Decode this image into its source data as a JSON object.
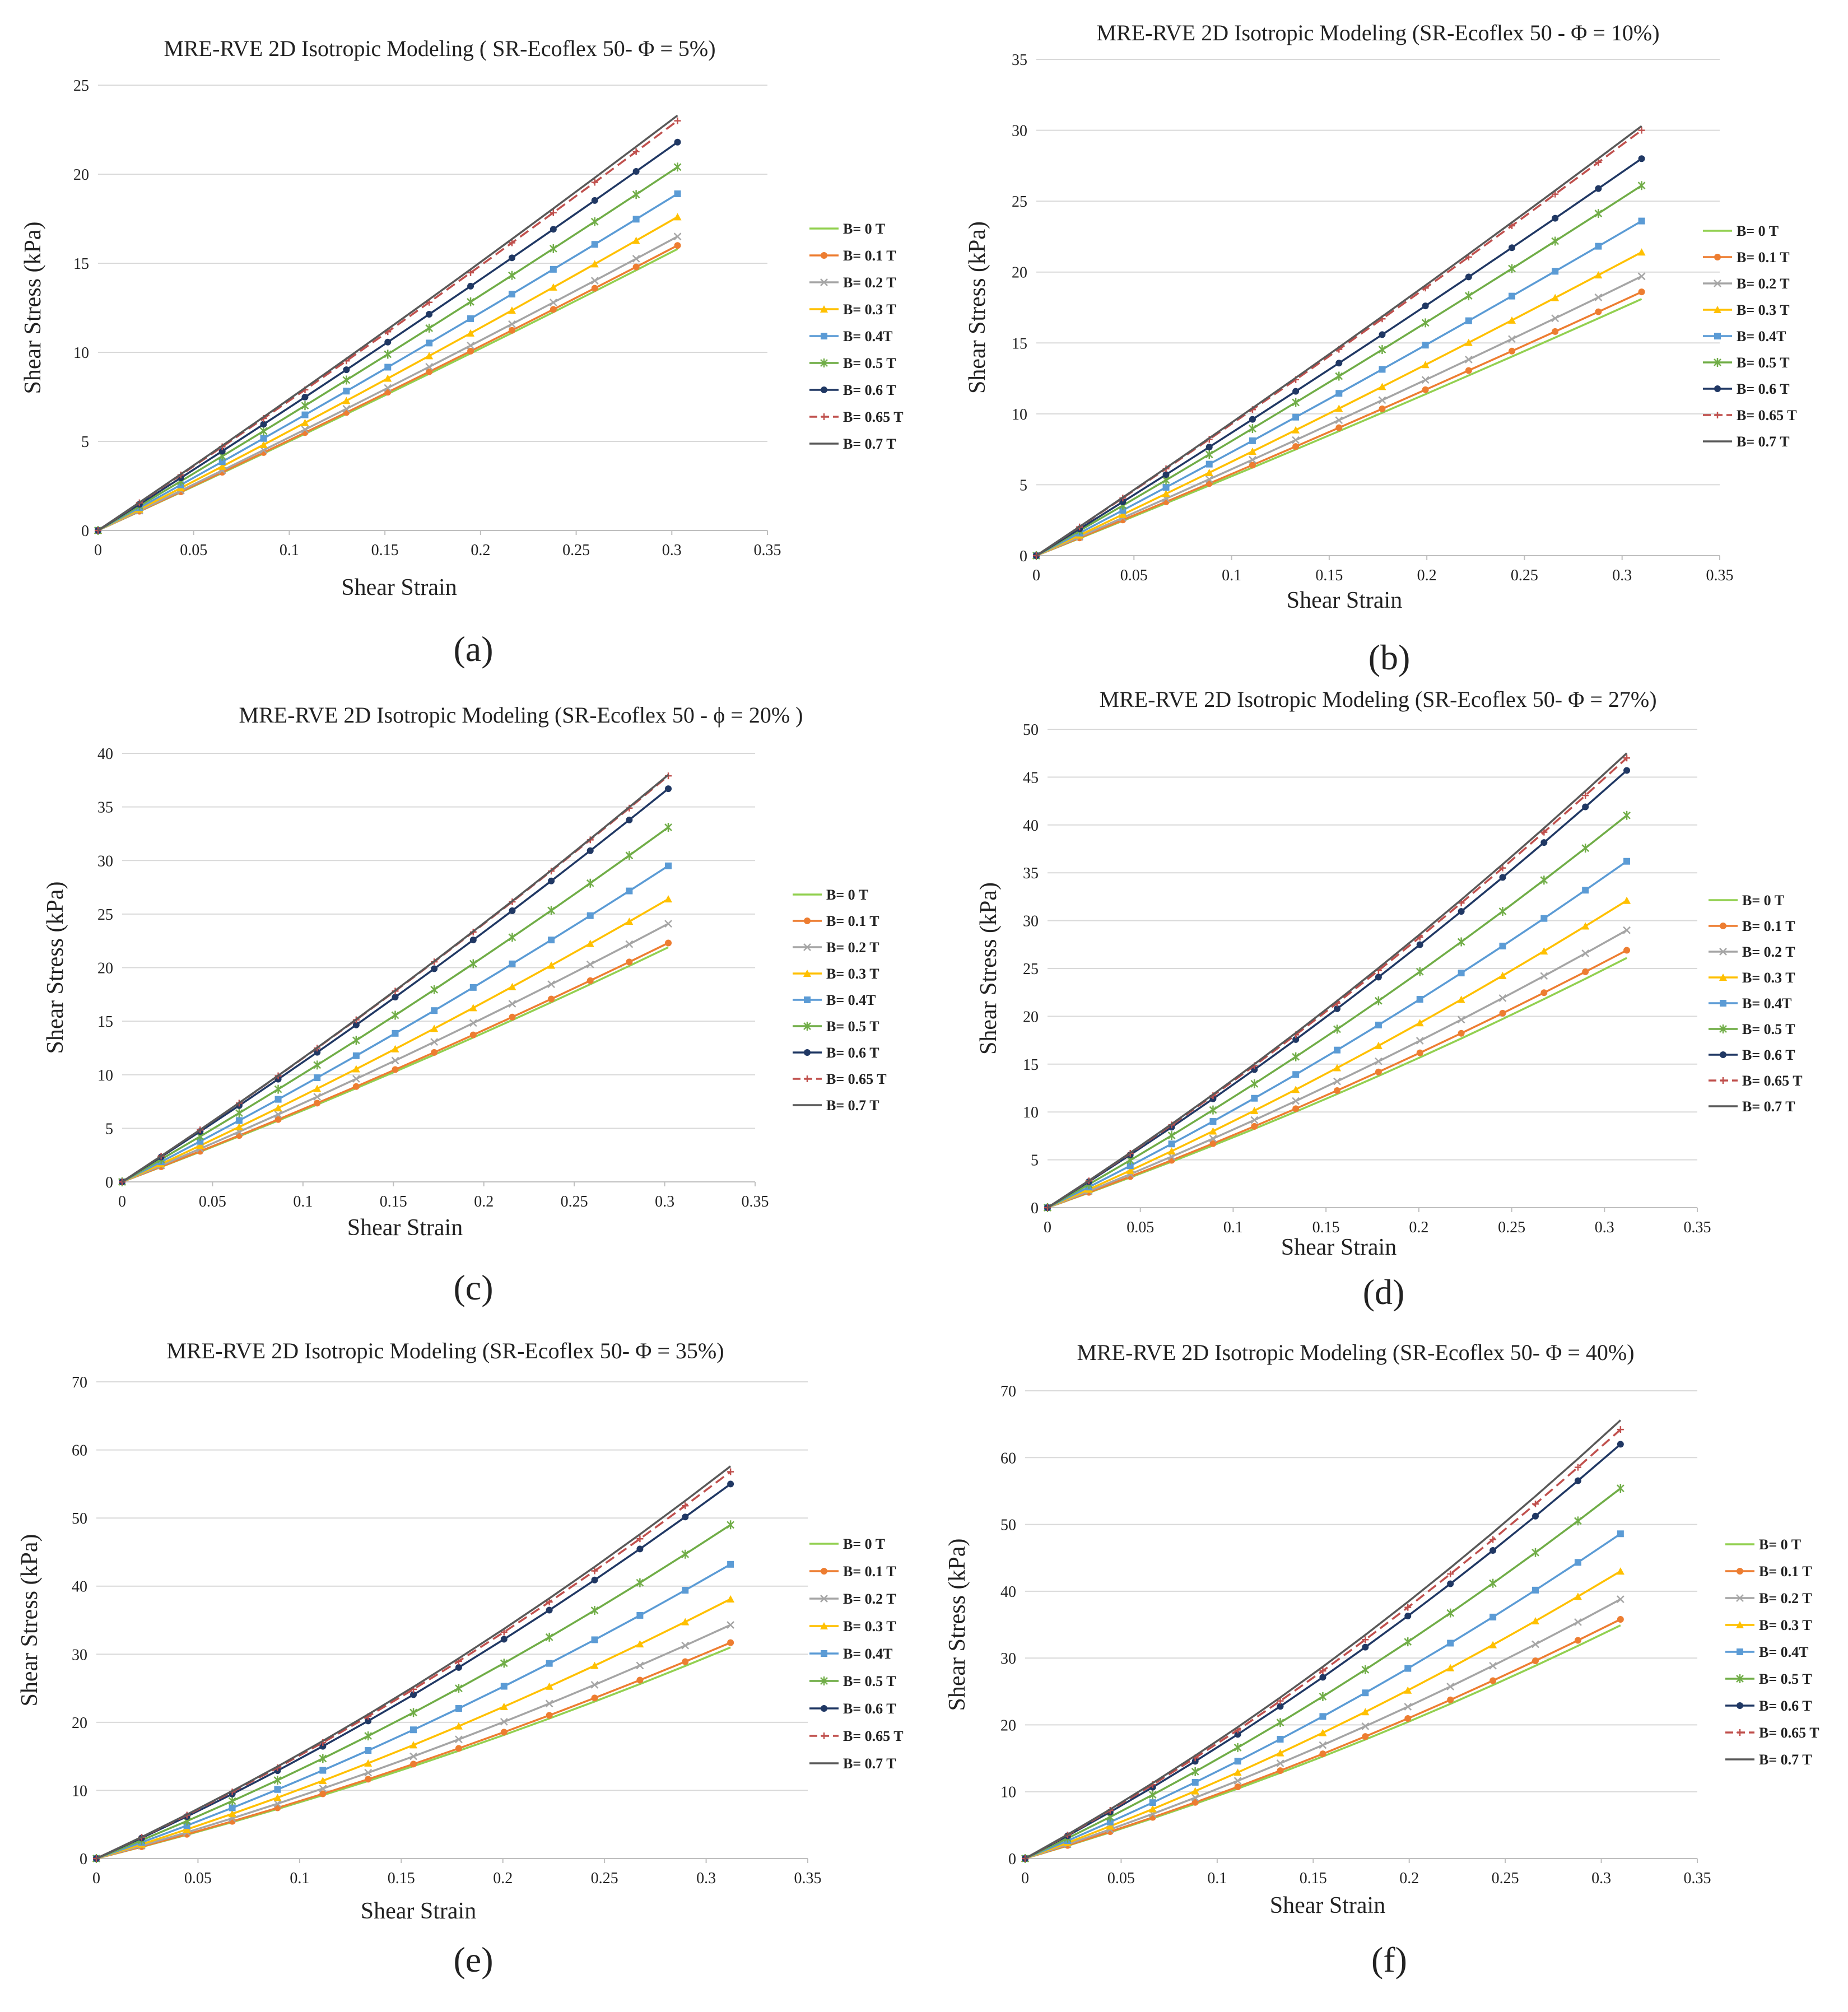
{
  "series_styles": [
    {
      "name": "B= 0 T",
      "color": "#92d050",
      "marker": "none",
      "dash": false
    },
    {
      "name": "B= 0.1 T",
      "color": "#ed7d31",
      "marker": "circle",
      "dash": false
    },
    {
      "name": "B= 0.2 T",
      "color": "#a5a5a5",
      "marker": "x",
      "dash": false
    },
    {
      "name": "B= 0.3 T",
      "color": "#ffc000",
      "marker": "triangle",
      "dash": false
    },
    {
      "name": "B= 0.4T",
      "color": "#5b9bd5",
      "marker": "square",
      "dash": false
    },
    {
      "name": "B= 0.5 T",
      "color": "#70ad47",
      "marker": "star",
      "dash": false
    },
    {
      "name": "B= 0.6 T",
      "color": "#203864",
      "marker": "circle",
      "dash": false
    },
    {
      "name": "B= 0.65 T",
      "color": "#c0504d",
      "marker": "plus",
      "dash": true
    },
    {
      "name": "B= 0.7 T",
      "color": "#595959",
      "marker": "none",
      "dash": false
    }
  ],
  "chart_data": [
    {
      "type": "line",
      "panel_label": "(a)",
      "title": "MRE-RVE 2D Isotropic Modeling ( SR-Ecoflex 50- Φ = 5%)",
      "xlabel": "Shear Strain",
      "ylabel": "Shear Stress (kPa)",
      "xlim": [
        0,
        0.35
      ],
      "ylim": [
        0,
        25
      ],
      "x_ticks": [
        "0",
        "0.05",
        "0.1",
        "0.15",
        "0.2",
        "0.25",
        "0.3",
        "0.35"
      ],
      "y_ticks": [
        "0",
        "5",
        "10",
        "15",
        "20",
        "25"
      ],
      "x_end": 0.303,
      "curvature": 0.06,
      "series": [
        {
          "name": "B= 0 T",
          "end": 15.8
        },
        {
          "name": "B= 0.1 T",
          "end": 16.0
        },
        {
          "name": "B= 0.2 T",
          "end": 16.5
        },
        {
          "name": "B= 0.3 T",
          "end": 17.6
        },
        {
          "name": "B= 0.4T",
          "end": 18.9
        },
        {
          "name": "B= 0.5 T",
          "end": 20.4
        },
        {
          "name": "B= 0.6 T",
          "end": 21.8
        },
        {
          "name": "B= 0.65 T",
          "end": 23.0
        },
        {
          "name": "B= 0.7 T",
          "end": 23.3
        }
      ],
      "legend": [
        "B= 0 T",
        "B= 0.1 T",
        "B= 0.2 T",
        "B= 0.3 T",
        "B= 0.4T",
        "B= 0.5 T",
        "B= 0.6 T",
        "B= 0.65 T",
        "B= 0.7 T"
      ]
    },
    {
      "type": "line",
      "panel_label": "(b)",
      "title": "MRE-RVE 2D Isotropic Modeling (SR-Ecoflex 50 - Φ = 10%)",
      "xlabel": "Shear Strain",
      "ylabel": "Shear Stress (kPa)",
      "xlim": [
        0,
        0.35
      ],
      "ylim": [
        0,
        35
      ],
      "x_ticks": [
        "0",
        "0.05",
        "0.1",
        "0.15",
        "0.2",
        "0.25",
        "0.3",
        "0.35"
      ],
      "y_ticks": [
        "0",
        "5",
        "10",
        "15",
        "20",
        "25",
        "30",
        "35"
      ],
      "x_end": 0.31,
      "curvature": 0.06,
      "series": [
        {
          "name": "B= 0 T",
          "end": 18.1
        },
        {
          "name": "B= 0.1 T",
          "end": 18.6
        },
        {
          "name": "B= 0.2 T",
          "end": 19.7
        },
        {
          "name": "B= 0.3 T",
          "end": 21.4
        },
        {
          "name": "B= 0.4T",
          "end": 23.6
        },
        {
          "name": "B= 0.5 T",
          "end": 26.1
        },
        {
          "name": "B= 0.6 T",
          "end": 28.0
        },
        {
          "name": "B= 0.65 T",
          "end": 30.0
        },
        {
          "name": "B= 0.7 T",
          "end": 30.3
        }
      ],
      "legend": [
        "B= 0 T",
        "B= 0.1 T",
        "B= 0.2 T",
        "B= 0.3 T",
        "B= 0.4T",
        "B= 0.5 T",
        "B= 0.6 T",
        "B= 0.65 T",
        "B= 0.7 T"
      ]
    },
    {
      "type": "line",
      "panel_label": "(c)",
      "title": "MRE-RVE 2D Isotropic Modeling (SR-Ecoflex 50 -  ϕ = 20% )",
      "xlabel": "Shear Strain",
      "ylabel": "Shear Stress (kPa)",
      "xlim": [
        0,
        0.35
      ],
      "ylim": [
        0,
        40
      ],
      "x_ticks": [
        "0",
        "0.05",
        "0.1",
        "0.15",
        "0.2",
        "0.25",
        "0.3",
        "0.35"
      ],
      "y_ticks": [
        "0",
        "5",
        "10",
        "15",
        "20",
        "25",
        "30",
        "35",
        "40"
      ],
      "x_end": 0.302,
      "curvature": 0.12,
      "series": [
        {
          "name": "B= 0 T",
          "end": 21.9
        },
        {
          "name": "B= 0.1 T",
          "end": 22.3
        },
        {
          "name": "B= 0.2 T",
          "end": 24.1
        },
        {
          "name": "B= 0.3 T",
          "end": 26.4
        },
        {
          "name": "B= 0.4T",
          "end": 29.5
        },
        {
          "name": "B= 0.5 T",
          "end": 33.1
        },
        {
          "name": "B= 0.6 T",
          "end": 36.7
        },
        {
          "name": "B= 0.65 T",
          "end": 37.9
        },
        {
          "name": "B= 0.7 T",
          "end": 38.0
        }
      ],
      "legend": [
        "B= 0 T",
        "B= 0.1 T",
        "B= 0.2 T",
        "B= 0.3 T",
        "B= 0.4T",
        "B= 0.5 T",
        "B= 0.6 T",
        "B= 0.65 T",
        "B= 0.7 T"
      ]
    },
    {
      "type": "line",
      "panel_label": "(d)",
      "title": "MRE-RVE 2D Isotropic Modeling (SR-Ecoflex 50- Φ = 27%)",
      "xlabel": "Shear Strain",
      "ylabel": "Shear Stress (kPa)",
      "xlim": [
        0,
        0.35
      ],
      "ylim": [
        0,
        50
      ],
      "x_ticks": [
        "0",
        "0.05",
        "0.1",
        "0.15",
        "0.2",
        "0.25",
        "0.3",
        "0.35"
      ],
      "y_ticks": [
        "0",
        "5",
        "10",
        "15",
        "20",
        "25",
        "30",
        "35",
        "40",
        "45",
        "50"
      ],
      "x_end": 0.312,
      "curvature": 0.18,
      "series": [
        {
          "name": "B= 0 T",
          "end": 26.1
        },
        {
          "name": "B= 0.1 T",
          "end": 26.9
        },
        {
          "name": "B= 0.2 T",
          "end": 29.0
        },
        {
          "name": "B= 0.3 T",
          "end": 32.1
        },
        {
          "name": "B= 0.4T",
          "end": 36.2
        },
        {
          "name": "B= 0.5 T",
          "end": 41.0
        },
        {
          "name": "B= 0.6 T",
          "end": 45.7
        },
        {
          "name": "B= 0.65 T",
          "end": 47.0
        },
        {
          "name": "B= 0.7 T",
          "end": 47.5
        }
      ],
      "legend": [
        "B= 0 T",
        "B= 0.1 T",
        "B= 0.2 T",
        "B= 0.3 T",
        "B= 0.4T",
        "B= 0.5 T",
        "B= 0.6 T",
        "B= 0.65 T",
        "B= 0.7 T"
      ]
    },
    {
      "type": "line",
      "panel_label": "(e)",
      "title": "MRE-RVE 2D Isotropic Modeling (SR-Ecoflex 50- Φ = 35%)",
      "xlabel": "Shear Strain",
      "ylabel": "Shear Stress (kPa)",
      "xlim": [
        0,
        0.35
      ],
      "ylim": [
        0,
        70
      ],
      "x_ticks": [
        "0",
        "0.05",
        "0.1",
        "0.15",
        "0.2",
        "0.25",
        "0.3",
        "0.35"
      ],
      "y_ticks": [
        "0",
        "10",
        "20",
        "30",
        "40",
        "50",
        "60",
        "70"
      ],
      "x_end": 0.312,
      "curvature": 0.25,
      "series": [
        {
          "name": "B= 0 T",
          "end": 31.0
        },
        {
          "name": "B= 0.1 T",
          "end": 31.7
        },
        {
          "name": "B= 0.2 T",
          "end": 34.3
        },
        {
          "name": "B= 0.3 T",
          "end": 38.1
        },
        {
          "name": "B= 0.4T",
          "end": 43.2
        },
        {
          "name": "B= 0.5 T",
          "end": 49.0
        },
        {
          "name": "B= 0.6 T",
          "end": 55.0
        },
        {
          "name": "B= 0.65 T",
          "end": 56.8
        },
        {
          "name": "B= 0.7 T",
          "end": 57.6
        }
      ],
      "legend": [
        "B= 0 T",
        "B= 0.1 T",
        "B= 0.2 T",
        "B= 0.3 T",
        "B= 0.4T",
        "B= 0.5 T",
        "B= 0.6 T",
        "B= 0.65 T",
        "B= 0.7 T"
      ]
    },
    {
      "type": "line",
      "panel_label": "(f)",
      "title": "MRE-RVE 2D Isotropic Modeling (SR-Ecoflex 50- Φ = 40%)",
      "xlabel": "Shear Strain",
      "ylabel": "Shear Stress (kPa)",
      "xlim": [
        0,
        0.35
      ],
      "ylim": [
        0,
        70
      ],
      "x_ticks": [
        "0",
        "0.05",
        "0.1",
        "0.15",
        "0.2",
        "0.25",
        "0.3",
        "0.35"
      ],
      "y_ticks": [
        "0",
        "10",
        "20",
        "30",
        "40",
        "50",
        "60",
        "70"
      ],
      "x_end": 0.31,
      "curvature": 0.25,
      "series": [
        {
          "name": "B= 0 T",
          "end": 34.9
        },
        {
          "name": "B= 0.1 T",
          "end": 35.8
        },
        {
          "name": "B= 0.2 T",
          "end": 38.8
        },
        {
          "name": "B= 0.3 T",
          "end": 43.0
        },
        {
          "name": "B= 0.4T",
          "end": 48.6
        },
        {
          "name": "B= 0.5 T",
          "end": 55.4
        },
        {
          "name": "B= 0.6 T",
          "end": 62.0
        },
        {
          "name": "B= 0.65 T",
          "end": 64.2
        },
        {
          "name": "B= 0.7 T",
          "end": 65.6
        }
      ],
      "legend": [
        "B= 0 T",
        "B= 0.1 T",
        "B= 0.2 T",
        "B= 0.3 T",
        "B= 0.4T",
        "B= 0.5 T",
        "B= 0.6 T",
        "B= 0.65 T",
        "B= 0.7 T"
      ]
    }
  ]
}
